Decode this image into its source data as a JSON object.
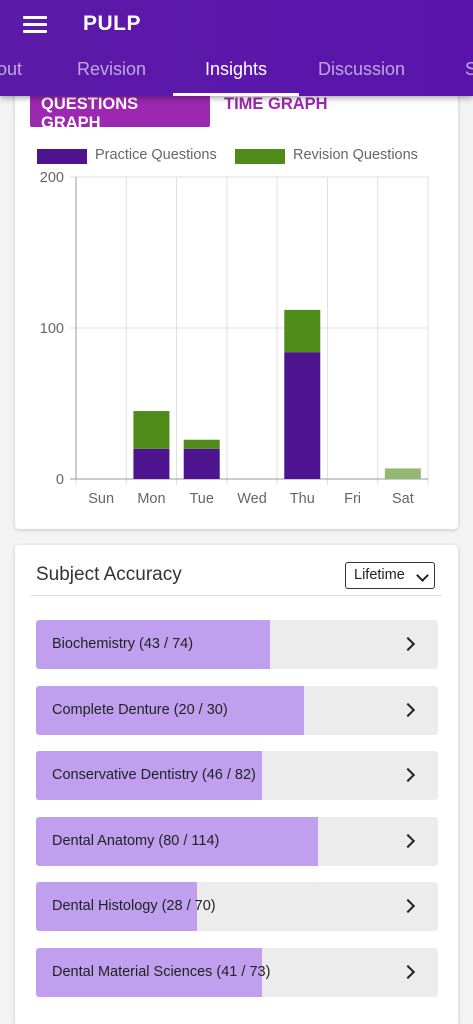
{
  "app": {
    "title": "PULP"
  },
  "tabs": [
    {
      "label": "out"
    },
    {
      "label": "Revision"
    },
    {
      "label": "Insights"
    },
    {
      "label": "Discussion"
    },
    {
      "label": "S"
    }
  ],
  "graph_toggle": {
    "questions_label": "QUESTIONS GRAPH",
    "time_label": "TIME GRAPH",
    "selected": "QUESTIONS GRAPH"
  },
  "colors": {
    "appbar": "#5a14ab",
    "practice": "#4e138f",
    "revision": "#4f8b19",
    "revision_today": "#93b872",
    "accuracy_fill": "#c0a0ee",
    "accent": "#9c27b0"
  },
  "chart_data": {
    "type": "bar",
    "stacked": true,
    "categories": [
      "Sun",
      "Mon",
      "Tue",
      "Wed",
      "Thu",
      "Fri",
      "Sat"
    ],
    "series": [
      {
        "name": "Practice Questions",
        "values": [
          0,
          20,
          20,
          0,
          84,
          0,
          0
        ]
      },
      {
        "name": "Revision Questions",
        "values": [
          0,
          25,
          6,
          0,
          28,
          0,
          7
        ]
      }
    ],
    "ylim": [
      0,
      200
    ],
    "yticks": [
      "0",
      "100",
      "200"
    ],
    "grid": true,
    "legend": "top"
  },
  "accuracy": {
    "title": "Subject Accuracy",
    "period": "Lifetime",
    "subjects": [
      {
        "label": "Biochemistry (43 / 74)",
        "correct": 43,
        "total": 74
      },
      {
        "label": "Complete Denture (20 / 30)",
        "correct": 20,
        "total": 30
      },
      {
        "label": "Conservative Dentistry (46 / 82)",
        "correct": 46,
        "total": 82
      },
      {
        "label": "Dental Anatomy (80 / 114)",
        "correct": 80,
        "total": 114
      },
      {
        "label": "Dental Histology (28 / 70)",
        "correct": 28,
        "total": 70
      },
      {
        "label": "Dental Material Sciences (41 / 73)",
        "correct": 41,
        "total": 73
      }
    ]
  }
}
